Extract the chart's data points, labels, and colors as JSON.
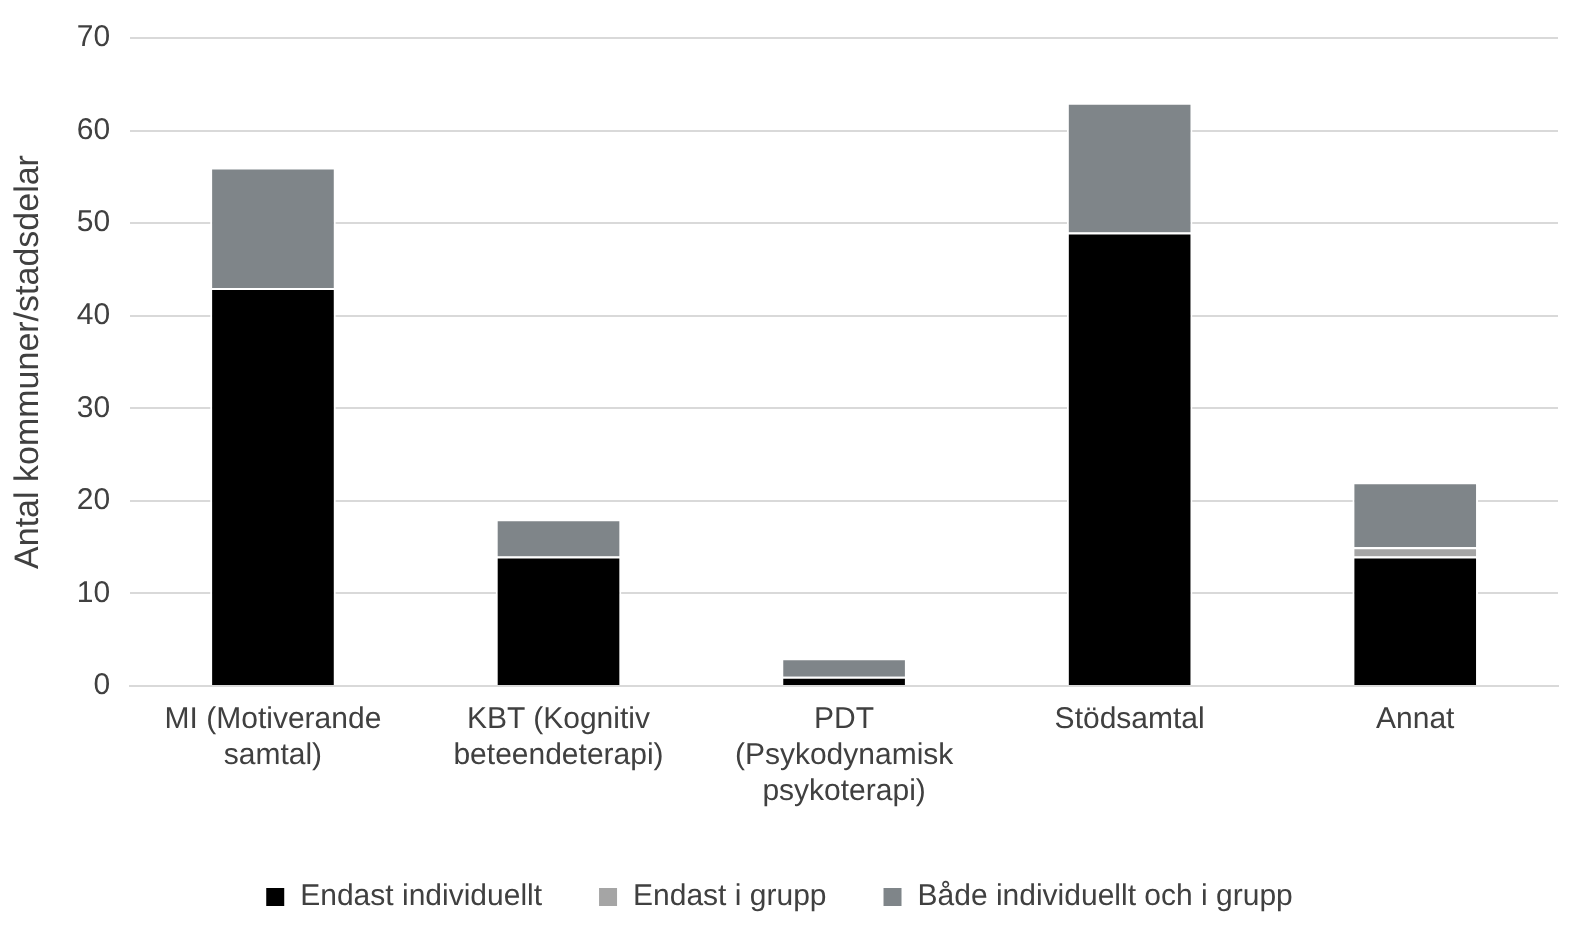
{
  "chart_data": {
    "type": "bar",
    "stacked": true,
    "ylabel": "Antal kommuner/stadsdelar",
    "categories": [
      "MI (Motiverande samtal)",
      "KBT (Kognitiv beteendeterapi)",
      "PDT (Psykodynamisk psykoterapi)",
      "Stödsamtal",
      "Annat"
    ],
    "series": [
      {
        "name": "Endast individuellt",
        "color": "#000000",
        "values": [
          43,
          14,
          1,
          49,
          14
        ]
      },
      {
        "name": "Endast i grupp",
        "color": "#a5a5a5",
        "values": [
          0,
          0,
          0,
          0,
          1
        ]
      },
      {
        "name": "Både individuellt och i grupp",
        "color": "#7f8589",
        "values": [
          13,
          4,
          2,
          14,
          7
        ]
      }
    ],
    "ylim": [
      0,
      70
    ],
    "yticks": [
      0,
      10,
      20,
      30,
      40,
      50,
      60,
      70
    ],
    "grid": "y",
    "legend": "bottom"
  }
}
